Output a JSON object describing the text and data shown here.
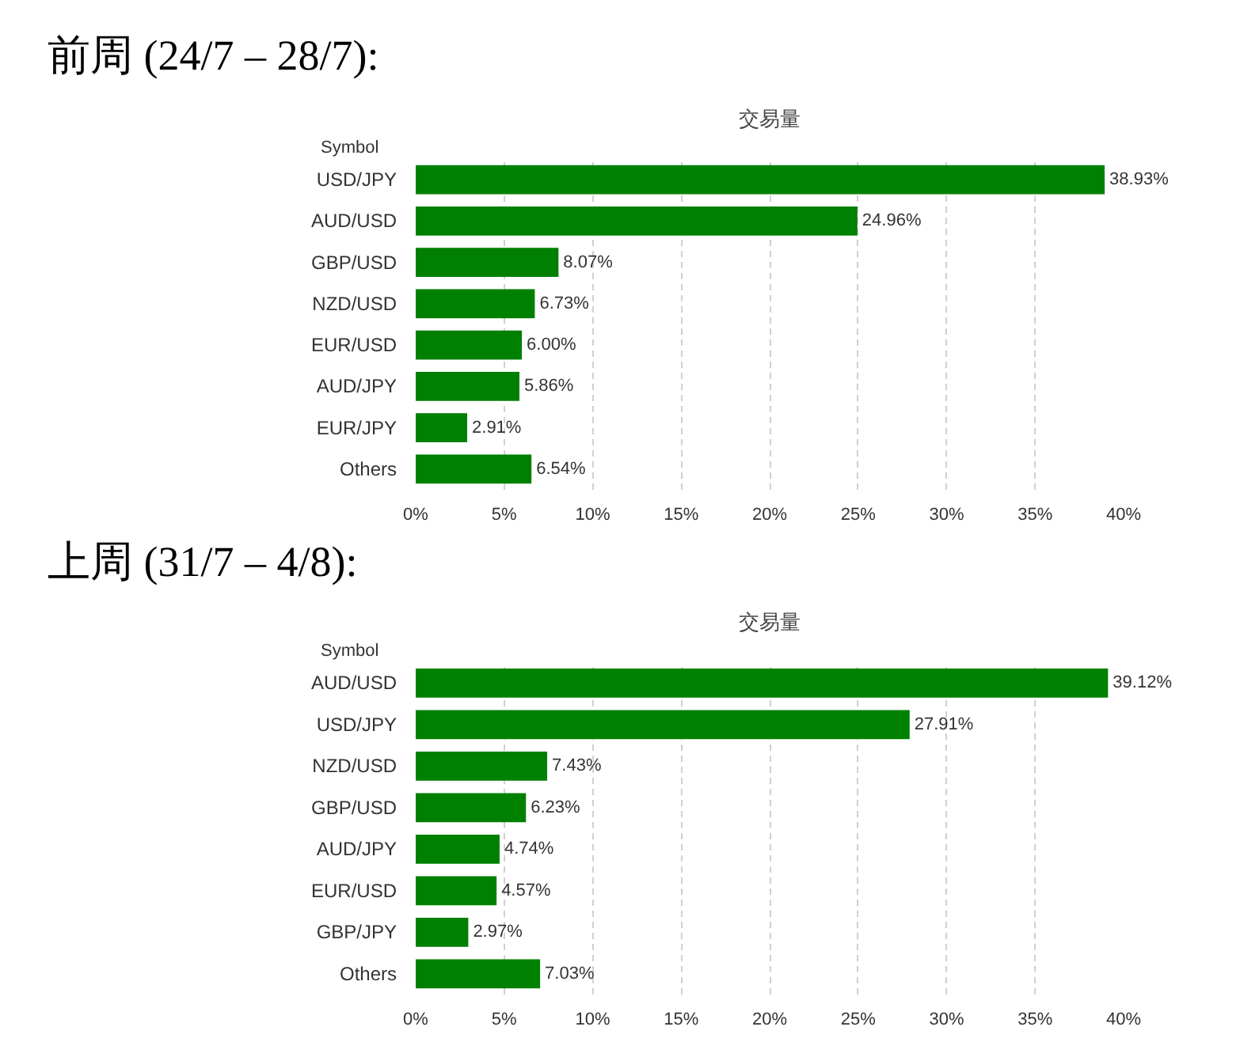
{
  "chart_data": [
    {
      "type": "bar",
      "orientation": "horizontal",
      "title": "前周 (24/7 – 28/7):",
      "subtitle": "交易量",
      "ylabel": "Symbol",
      "categories": [
        "USD/JPY",
        "AUD/USD",
        "GBP/USD",
        "NZD/USD",
        "EUR/USD",
        "AUD/JPY",
        "EUR/JPY",
        "Others"
      ],
      "values": [
        38.93,
        24.96,
        8.07,
        6.73,
        6.0,
        5.86,
        2.91,
        6.54
      ],
      "value_labels": [
        "38.93%",
        "24.96%",
        "8.07%",
        "6.73%",
        "6.00%",
        "5.86%",
        "2.91%",
        "6.54%"
      ],
      "color": "#008000",
      "xlim": [
        0,
        40
      ],
      "xticks": [
        {
          "value": 0,
          "label": "0%"
        },
        {
          "value": 5,
          "label": "5%"
        },
        {
          "value": 10,
          "label": "10%"
        },
        {
          "value": 15,
          "label": "15%"
        },
        {
          "value": 20,
          "label": "20%"
        },
        {
          "value": 25,
          "label": "25%"
        },
        {
          "value": 30,
          "label": "30%"
        },
        {
          "value": 35,
          "label": "35%"
        },
        {
          "value": 40,
          "label": "40%"
        }
      ],
      "grid": "x"
    },
    {
      "type": "bar",
      "orientation": "horizontal",
      "title": "上周 (31/7 – 4/8):",
      "subtitle": "交易量",
      "ylabel": "Symbol",
      "categories": [
        "AUD/USD",
        "USD/JPY",
        "NZD/USD",
        "GBP/USD",
        "AUD/JPY",
        "EUR/USD",
        "GBP/JPY",
        "Others"
      ],
      "values": [
        39.12,
        27.91,
        7.43,
        6.23,
        4.74,
        4.57,
        2.97,
        7.03
      ],
      "value_labels": [
        "39.12%",
        "27.91%",
        "7.43%",
        "6.23%",
        "4.74%",
        "4.57%",
        "2.97%",
        "7.03%"
      ],
      "color": "#008000",
      "xlim": [
        0,
        40
      ],
      "xticks": [
        {
          "value": 0,
          "label": "0%"
        },
        {
          "value": 5,
          "label": "5%"
        },
        {
          "value": 10,
          "label": "10%"
        },
        {
          "value": 15,
          "label": "15%"
        },
        {
          "value": 20,
          "label": "20%"
        },
        {
          "value": 25,
          "label": "25%"
        },
        {
          "value": 30,
          "label": "30%"
        },
        {
          "value": 35,
          "label": "35%"
        },
        {
          "value": 40,
          "label": "40%"
        }
      ],
      "grid": "x"
    }
  ]
}
